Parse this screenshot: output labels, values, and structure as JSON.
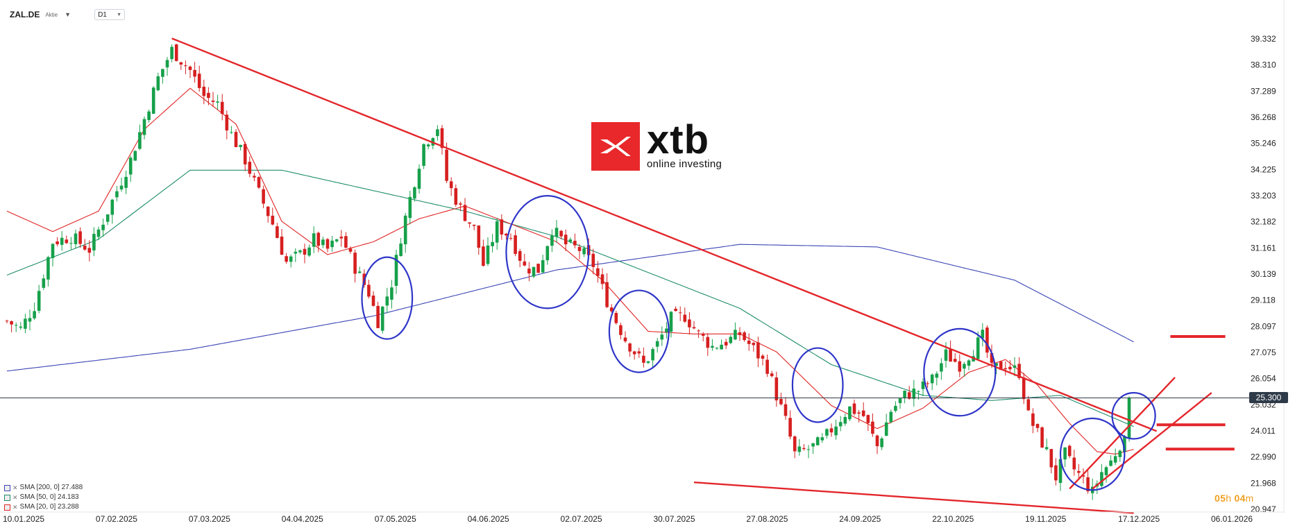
{
  "header": {
    "symbol": "ZAL.DE",
    "instrument_type": "Aktie",
    "timeframe": "D1"
  },
  "logo": {
    "name": "xtb",
    "tagline": "online investing"
  },
  "countdown": {
    "hours": "05",
    "h_unit": "h",
    "minutes": "04",
    "m_unit": "m"
  },
  "current_price": "25.300",
  "indicators": [
    {
      "label": "SMA [200, 0] 27.488",
      "color": "#3a45b5"
    },
    {
      "label": "SMA [50, 0] 24.183",
      "color": "#1e8c6a"
    },
    {
      "label": "SMA [20, 0] 23.288",
      "color": "#e02424"
    }
  ],
  "colors": {
    "bull": "#16a04a",
    "bear": "#d61f1f",
    "sma200": "#3a45b5",
    "sma50": "#1e8c6a",
    "sma20": "#e02424",
    "trend": "#e3262b",
    "circle": "#2e35c8",
    "price_line": "#2e3a48",
    "axis_text": "#222222"
  },
  "chart_data": {
    "type": "candlestick",
    "symbol": "ZAL.DE",
    "timeframe": "D1",
    "x_tick_labels": [
      "10.01.2025",
      "07.02.2025",
      "07.03.2025",
      "04.04.2025",
      "07.05.2025",
      "04.06.2025",
      "02.07.2025",
      "30.07.2025",
      "27.08.2025",
      "24.09.2025",
      "22.10.2025",
      "19.11.2025",
      "17.12.2025",
      "06.01.2026"
    ],
    "y_tick_labels": [
      "39.332",
      "38.310",
      "37.289",
      "36.268",
      "35.246",
      "34.225",
      "33.203",
      "32.182",
      "31.161",
      "30.139",
      "29.118",
      "28.097",
      "27.075",
      "26.054",
      "25.032",
      "24.011",
      "22.990",
      "21.968",
      "20.947"
    ],
    "ylim": [
      20.947,
      39.332
    ],
    "last_price": 25.3,
    "candle_count": 246,
    "close_anchors": [
      [
        0,
        28.3
      ],
      [
        3,
        28.0
      ],
      [
        6,
        28.9
      ],
      [
        10,
        31.4
      ],
      [
        14,
        31.6
      ],
      [
        18,
        31.1
      ],
      [
        22,
        32.6
      ],
      [
        27,
        34.6
      ],
      [
        30,
        36.2
      ],
      [
        33,
        37.8
      ],
      [
        36,
        38.9
      ],
      [
        40,
        38.1
      ],
      [
        43,
        37.1
      ],
      [
        46,
        36.8
      ],
      [
        49,
        35.6
      ],
      [
        52,
        34.6
      ],
      [
        55,
        33.3
      ],
      [
        58,
        32.1
      ],
      [
        61,
        30.6
      ],
      [
        64,
        30.9
      ],
      [
        67,
        31.5
      ],
      [
        70,
        31.1
      ],
      [
        73,
        31.6
      ],
      [
        76,
        30.4
      ],
      [
        79,
        29.4
      ],
      [
        81,
        28.3
      ],
      [
        84,
        29.8
      ],
      [
        86,
        31.6
      ],
      [
        88,
        33.1
      ],
      [
        91,
        35.2
      ],
      [
        94,
        35.9
      ],
      [
        96,
        33.8
      ],
      [
        99,
        32.7
      ],
      [
        102,
        31.9
      ],
      [
        104,
        30.5
      ],
      [
        107,
        32.0
      ],
      [
        110,
        31.6
      ],
      [
        113,
        30.4
      ],
      [
        116,
        30.3
      ],
      [
        119,
        31.9
      ],
      [
        122,
        31.3
      ],
      [
        125,
        31.1
      ],
      [
        128,
        30.5
      ],
      [
        131,
        29.1
      ],
      [
        133,
        28.3
      ],
      [
        135,
        27.6
      ],
      [
        137,
        27.1
      ],
      [
        139,
        26.6
      ],
      [
        142,
        27.4
      ],
      [
        145,
        28.4
      ],
      [
        148,
        28.5
      ],
      [
        151,
        27.8
      ],
      [
        154,
        27.3
      ],
      [
        157,
        27.5
      ],
      [
        160,
        27.8
      ],
      [
        163,
        27.2
      ],
      [
        166,
        26.5
      ],
      [
        168,
        25.4
      ],
      [
        170,
        24.4
      ],
      [
        172,
        23.1
      ],
      [
        175,
        23.3
      ],
      [
        178,
        23.6
      ],
      [
        181,
        24.3
      ],
      [
        184,
        24.9
      ],
      [
        187,
        24.6
      ],
      [
        190,
        23.4
      ],
      [
        193,
        24.8
      ],
      [
        196,
        25.4
      ],
      [
        199,
        25.6
      ],
      [
        202,
        26.0
      ],
      [
        205,
        27.0
      ],
      [
        208,
        26.6
      ],
      [
        211,
        27.2
      ],
      [
        213,
        27.7
      ],
      [
        215,
        26.4
      ],
      [
        218,
        26.6
      ],
      [
        221,
        26.3
      ],
      [
        223,
        24.6
      ],
      [
        225,
        23.9
      ],
      [
        227,
        23.2
      ],
      [
        229,
        22.2
      ],
      [
        231,
        23.1
      ],
      [
        233,
        22.5
      ],
      [
        235,
        22.1
      ],
      [
        237,
        21.6
      ],
      [
        239,
        22.4
      ],
      [
        241,
        22.8
      ],
      [
        243,
        23.5
      ],
      [
        245,
        23.6
      ],
      [
        246,
        25.3
      ]
    ],
    "sma200": [
      [
        0,
        26.35
      ],
      [
        40,
        27.2
      ],
      [
        80,
        28.5
      ],
      [
        120,
        30.3
      ],
      [
        160,
        31.3
      ],
      [
        190,
        31.2
      ],
      [
        220,
        29.9
      ],
      [
        246,
        27.488
      ]
    ],
    "sma50": [
      [
        0,
        30.1
      ],
      [
        20,
        31.5
      ],
      [
        40,
        34.2
      ],
      [
        60,
        34.2
      ],
      [
        80,
        33.4
      ],
      [
        100,
        32.6
      ],
      [
        120,
        31.6
      ],
      [
        140,
        30.2
      ],
      [
        160,
        28.8
      ],
      [
        180,
        26.6
      ],
      [
        200,
        25.4
      ],
      [
        215,
        25.2
      ],
      [
        230,
        25.4
      ],
      [
        246,
        24.183
      ]
    ],
    "sma20": [
      [
        0,
        32.6
      ],
      [
        10,
        31.8
      ],
      [
        20,
        32.6
      ],
      [
        30,
        35.8
      ],
      [
        40,
        37.4
      ],
      [
        50,
        36.0
      ],
      [
        60,
        32.2
      ],
      [
        70,
        30.9
      ],
      [
        80,
        31.4
      ],
      [
        90,
        32.3
      ],
      [
        100,
        32.8
      ],
      [
        110,
        32.1
      ],
      [
        120,
        31.4
      ],
      [
        130,
        29.9
      ],
      [
        140,
        27.9
      ],
      [
        150,
        27.8
      ],
      [
        160,
        27.8
      ],
      [
        168,
        27.1
      ],
      [
        180,
        25.0
      ],
      [
        190,
        24.1
      ],
      [
        200,
        24.9
      ],
      [
        210,
        26.3
      ],
      [
        218,
        26.8
      ],
      [
        225,
        25.8
      ],
      [
        232,
        24.3
      ],
      [
        238,
        23.2
      ],
      [
        242,
        23.1
      ],
      [
        246,
        23.288
      ]
    ],
    "annotations": {
      "trendlines": [
        {
          "from": [
            36,
            39.35
          ],
          "to": [
            251,
            24.0
          ]
        },
        {
          "from": [
            150,
            22.0
          ],
          "to": [
            246,
            20.8
          ]
        },
        {
          "from": [
            232,
            21.75
          ],
          "to": [
            255,
            26.1
          ]
        },
        {
          "from": [
            237,
            21.75
          ],
          "to": [
            263,
            25.5
          ]
        }
      ],
      "level_lines": [
        {
          "x": [
            254,
            266
          ],
          "y": 27.7
        },
        {
          "x": [
            251,
            266
          ],
          "y": 24.25
        },
        {
          "x": [
            253,
            268
          ],
          "y": 23.3
        }
      ],
      "circles": [
        {
          "center": [
            83,
            29.2
          ],
          "rx": 5.5,
          "ry": 1.6
        },
        {
          "center": [
            118,
            31.0
          ],
          "rx": 9.0,
          "ry": 2.2
        },
        {
          "center": [
            138,
            27.9
          ],
          "rx": 6.5,
          "ry": 1.6
        },
        {
          "center": [
            177,
            25.8
          ],
          "rx": 5.5,
          "ry": 1.45
        },
        {
          "center": [
            208,
            26.3
          ],
          "rx": 7.8,
          "ry": 1.7
        },
        {
          "center": [
            237,
            23.1
          ],
          "rx": 7.0,
          "ry": 1.4
        },
        {
          "center": [
            246,
            24.6
          ],
          "rx": 4.7,
          "ry": 0.9
        }
      ]
    }
  }
}
